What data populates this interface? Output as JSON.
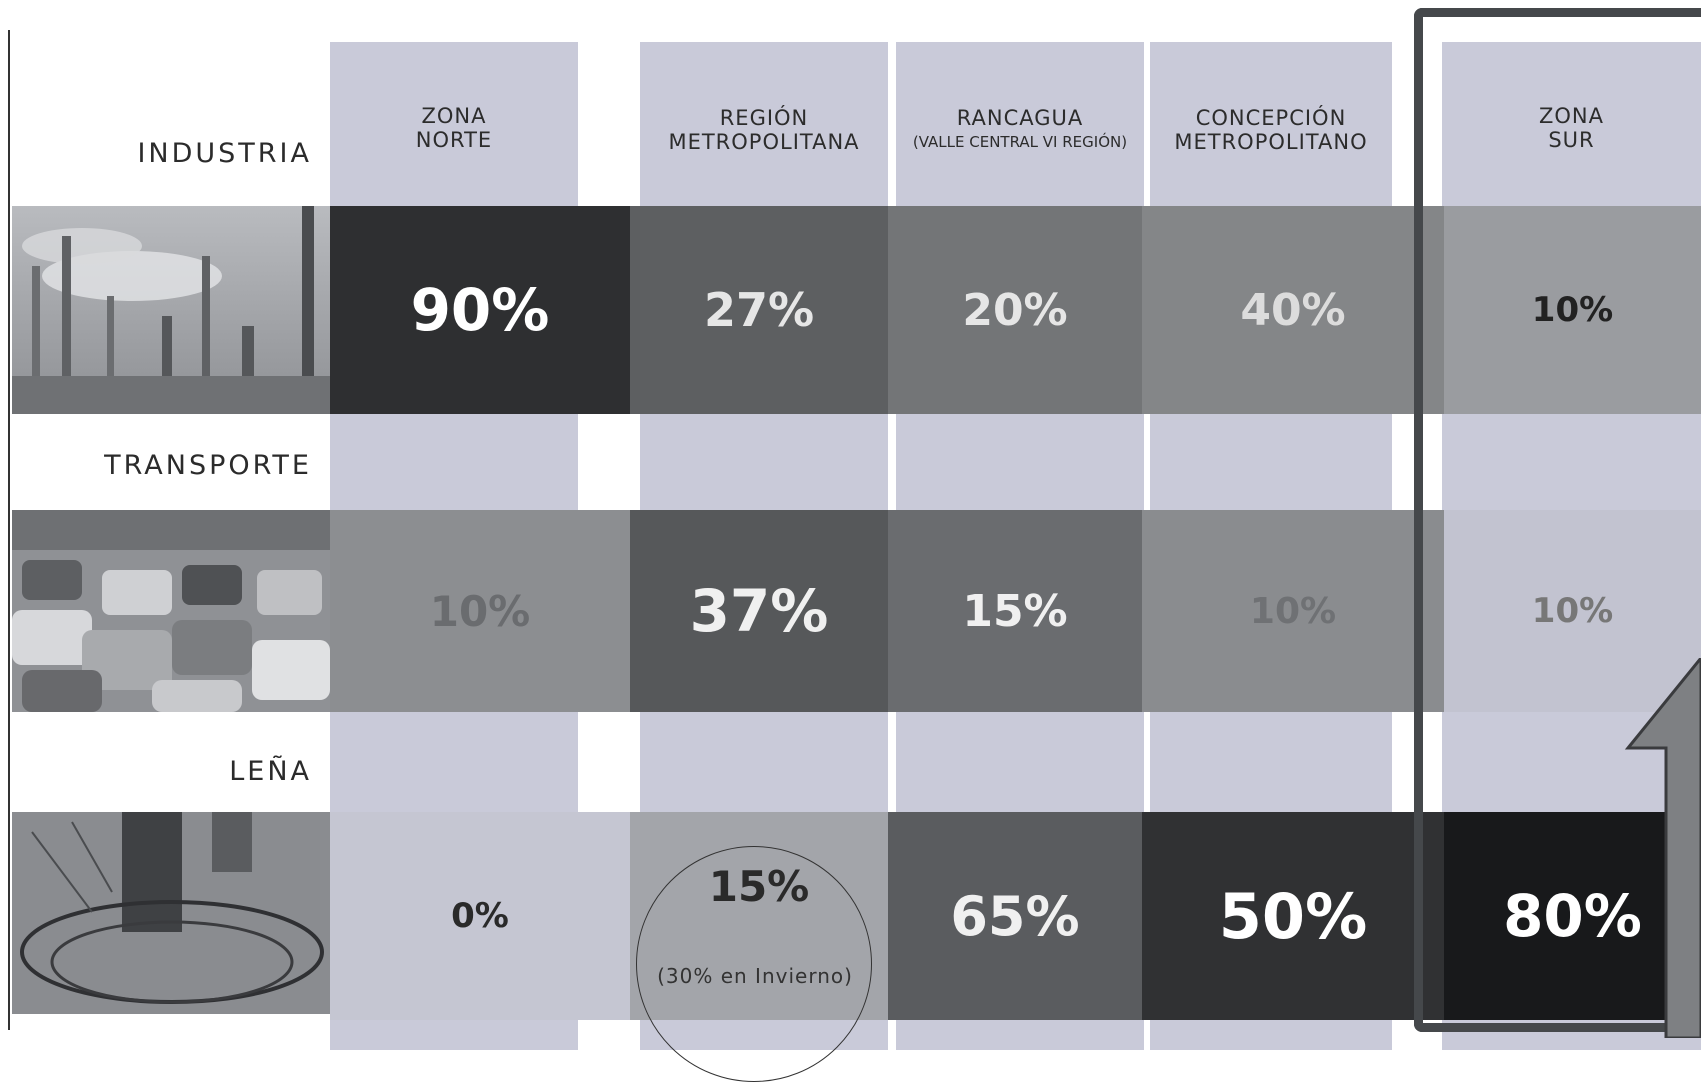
{
  "chart_data": {
    "type": "table",
    "title": "",
    "columns": [
      {
        "label_lines": [
          "Zona",
          "Norte"
        ]
      },
      {
        "label_lines": [
          "Región",
          "Metropolitana"
        ]
      },
      {
        "label_lines": [
          "Rancagua",
          "(Valle Central VI Región)"
        ]
      },
      {
        "label_lines": [
          "Concepción",
          "Metropolitano"
        ]
      },
      {
        "label_lines": [
          "Zona",
          "Sur"
        ]
      }
    ],
    "rows": [
      {
        "label": "INDUSTRIA",
        "values": [
          "90%",
          "27%",
          "20%",
          "40%",
          "10%"
        ],
        "shades": [
          "#2e2f31",
          "#5d5f61",
          "#737577",
          "#848688",
          "#9a9ca0"
        ],
        "text_colors": [
          "#ffffff",
          "#e6e6e6",
          "#e6e6e6",
          "#dcdcdc",
          "#222222"
        ]
      },
      {
        "label": "TRANSPORTE",
        "values": [
          "10%",
          "37%",
          "15%",
          "10%",
          "10%"
        ],
        "shades": [
          "#8c8e91",
          "#56585a",
          "#6a6c6f",
          "#8a8c8f",
          "#c2c3d0"
        ],
        "text_colors": [
          "#6a6c6f",
          "#f0f0f0",
          "#f0f0f0",
          "#6f7174",
          "#777777"
        ]
      },
      {
        "label": "LEÑA",
        "values": [
          "0%",
          "15%",
          "65%",
          "50%",
          "80%"
        ],
        "shades": [
          "#c5c6d2",
          "#a3a5aa",
          "#5a5c5f",
          "#303133",
          "#18191b"
        ],
        "text_colors": [
          "#2a2a2a",
          "#2a2a2a",
          "#f0f0f0",
          "#ffffff",
          "#ffffff"
        ]
      }
    ],
    "annotation": "(30% en Invierno)",
    "highlight_column": 4
  },
  "colors": {
    "column_bg": "#c9cad9",
    "highlight_border": "#45484b"
  },
  "icons": {
    "industria_photo": "factory-smokestacks-image",
    "transporte_photo": "traffic-jam-image",
    "lena_photo": "wood-stove-image",
    "arrow": "up-arrow-icon"
  }
}
